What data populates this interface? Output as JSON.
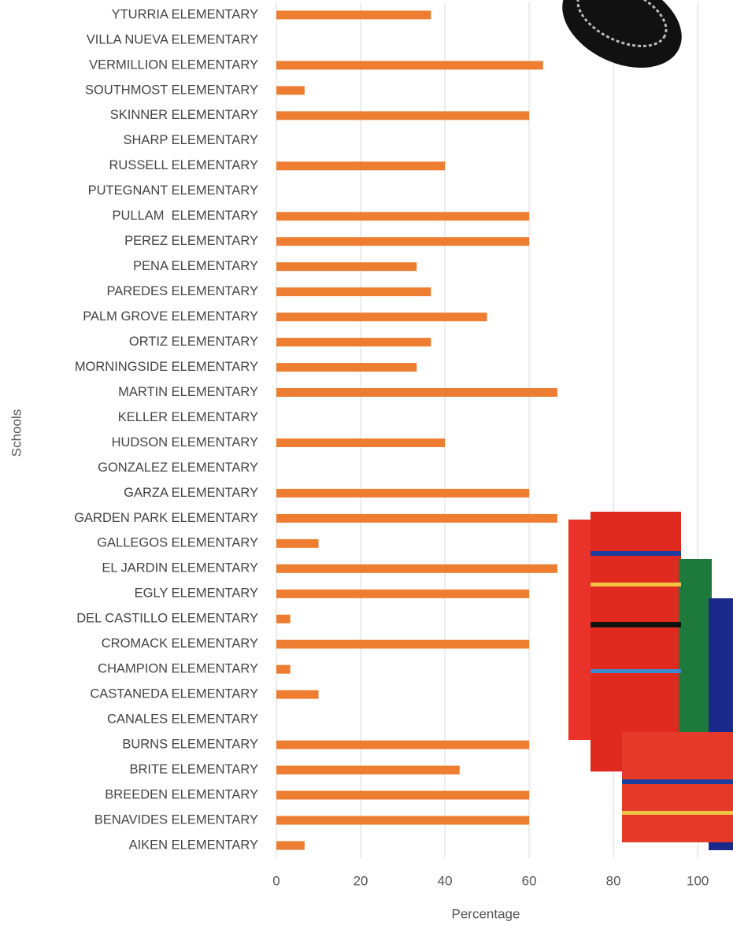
{
  "chart_data": {
    "type": "barh",
    "xlabel": "Percentage",
    "ylabel": "Schools",
    "categories": [
      "YTURRIA ELEMENTARY",
      "VILLA NUEVA ELEMENTARY",
      "VERMILLION ELEMENTARY",
      "SOUTHMOST ELEMENTARY",
      "SKINNER ELEMENTARY",
      "SHARP ELEMENTARY",
      "RUSSELL ELEMENTARY",
      "PUTEGNANT ELEMENTARY",
      "PULLAM  ELEMENTARY",
      "PEREZ ELEMENTARY",
      "PENA ELEMENTARY",
      "PAREDES ELEMENTARY",
      "PALM GROVE ELEMENTARY",
      "ORTIZ ELEMENTARY",
      "MORNINGSIDE ELEMENTARY",
      "MARTIN ELEMENTARY",
      "KELLER ELEMENTARY",
      "HUDSON ELEMENTARY",
      "GONZALEZ ELEMENTARY",
      "GARZA ELEMENTARY",
      "GARDEN PARK ELEMENTARY",
      "GALLEGOS ELEMENTARY",
      "EL JARDIN ELEMENTARY",
      "EGLY ELEMENTARY",
      "DEL CASTILLO ELEMENTARY",
      "CROMACK ELEMENTARY",
      "CHAMPION ELEMENTARY",
      "CASTANEDA ELEMENTARY",
      "CANALES ELEMENTARY",
      "BURNS ELEMENTARY",
      "BRITE ELEMENTARY",
      "BREEDEN ELEMENTARY",
      "BENAVIDES ELEMENTARY",
      "AIKEN ELEMENTARY"
    ],
    "values": [
      36.7,
      0,
      63.3,
      6.7,
      60,
      0,
      40,
      0,
      60,
      60,
      33.3,
      36.7,
      50,
      36.7,
      33.3,
      66.7,
      0,
      40,
      0,
      60,
      66.7,
      10,
      66.7,
      60,
      3.3,
      60,
      3.3,
      10,
      0,
      60,
      43.5,
      60,
      60,
      6.7
    ],
    "color": "#ed7d31",
    "xlim": [
      0,
      108
    ],
    "xticks": [
      0,
      20,
      40,
      60,
      80,
      100
    ],
    "grid": true
  }
}
